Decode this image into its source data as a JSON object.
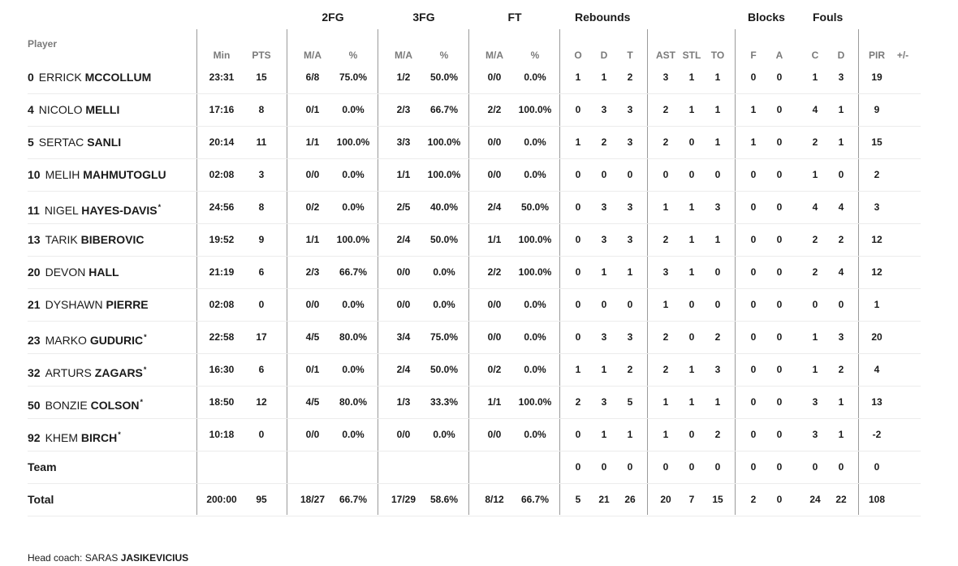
{
  "groups": [
    {
      "key": "2fg",
      "label": "2FG"
    },
    {
      "key": "3fg",
      "label": "3FG"
    },
    {
      "key": "ft",
      "label": "FT"
    },
    {
      "key": "rebounds",
      "label": "Rebounds"
    },
    {
      "key": "blocks",
      "label": "Blocks"
    },
    {
      "key": "fouls",
      "label": "Fouls"
    }
  ],
  "player_header": "Player",
  "columns": [
    "Min",
    "PTS",
    "M/A",
    "%",
    "M/A",
    "%",
    "M/A",
    "%",
    "O",
    "D",
    "T",
    "AST",
    "STL",
    "TO",
    "F",
    "A",
    "C",
    "D",
    "PIR",
    "+/-"
  ],
  "players": [
    {
      "number": "0",
      "first": "ERRICK",
      "last": "MCCOLLUM",
      "starter": false,
      "stats": [
        "23:31",
        "15",
        "6/8",
        "75.0%",
        "1/2",
        "50.0%",
        "0/0",
        "0.0%",
        "1",
        "1",
        "2",
        "3",
        "1",
        "1",
        "0",
        "0",
        "1",
        "3",
        "19",
        ""
      ]
    },
    {
      "number": "4",
      "first": "NICOLO",
      "last": "MELLI",
      "starter": false,
      "stats": [
        "17:16",
        "8",
        "0/1",
        "0.0%",
        "2/3",
        "66.7%",
        "2/2",
        "100.0%",
        "0",
        "3",
        "3",
        "2",
        "1",
        "1",
        "1",
        "0",
        "4",
        "1",
        "9",
        ""
      ]
    },
    {
      "number": "5",
      "first": "SERTAC",
      "last": "SANLI",
      "starter": false,
      "stats": [
        "20:14",
        "11",
        "1/1",
        "100.0%",
        "3/3",
        "100.0%",
        "0/0",
        "0.0%",
        "1",
        "2",
        "3",
        "2",
        "0",
        "1",
        "1",
        "0",
        "2",
        "1",
        "15",
        ""
      ]
    },
    {
      "number": "10",
      "first": "MELIH",
      "last": "MAHMUTOGLU",
      "starter": false,
      "stats": [
        "02:08",
        "3",
        "0/0",
        "0.0%",
        "1/1",
        "100.0%",
        "0/0",
        "0.0%",
        "0",
        "0",
        "0",
        "0",
        "0",
        "0",
        "0",
        "0",
        "1",
        "0",
        "2",
        ""
      ]
    },
    {
      "number": "11",
      "first": "NIGEL",
      "last": "HAYES-DAVIS",
      "starter": true,
      "stats": [
        "24:56",
        "8",
        "0/2",
        "0.0%",
        "2/5",
        "40.0%",
        "2/4",
        "50.0%",
        "0",
        "3",
        "3",
        "1",
        "1",
        "3",
        "0",
        "0",
        "4",
        "4",
        "3",
        ""
      ]
    },
    {
      "number": "13",
      "first": "TARIK",
      "last": "BIBEROVIC",
      "starter": false,
      "stats": [
        "19:52",
        "9",
        "1/1",
        "100.0%",
        "2/4",
        "50.0%",
        "1/1",
        "100.0%",
        "0",
        "3",
        "3",
        "2",
        "1",
        "1",
        "0",
        "0",
        "2",
        "2",
        "12",
        ""
      ]
    },
    {
      "number": "20",
      "first": "DEVON",
      "last": "HALL",
      "starter": false,
      "stats": [
        "21:19",
        "6",
        "2/3",
        "66.7%",
        "0/0",
        "0.0%",
        "2/2",
        "100.0%",
        "0",
        "1",
        "1",
        "3",
        "1",
        "0",
        "0",
        "0",
        "2",
        "4",
        "12",
        ""
      ]
    },
    {
      "number": "21",
      "first": "DYSHAWN",
      "last": "PIERRE",
      "starter": false,
      "stats": [
        "02:08",
        "0",
        "0/0",
        "0.0%",
        "0/0",
        "0.0%",
        "0/0",
        "0.0%",
        "0",
        "0",
        "0",
        "1",
        "0",
        "0",
        "0",
        "0",
        "0",
        "0",
        "1",
        ""
      ]
    },
    {
      "number": "23",
      "first": "MARKO",
      "last": "GUDURIC",
      "starter": true,
      "stats": [
        "22:58",
        "17",
        "4/5",
        "80.0%",
        "3/4",
        "75.0%",
        "0/0",
        "0.0%",
        "0",
        "3",
        "3",
        "2",
        "0",
        "2",
        "0",
        "0",
        "1",
        "3",
        "20",
        ""
      ]
    },
    {
      "number": "32",
      "first": "ARTURS",
      "last": "ZAGARS",
      "starter": true,
      "stats": [
        "16:30",
        "6",
        "0/1",
        "0.0%",
        "2/4",
        "50.0%",
        "0/2",
        "0.0%",
        "1",
        "1",
        "2",
        "2",
        "1",
        "3",
        "0",
        "0",
        "1",
        "2",
        "4",
        ""
      ]
    },
    {
      "number": "50",
      "first": "BONZIE",
      "last": "COLSON",
      "starter": true,
      "stats": [
        "18:50",
        "12",
        "4/5",
        "80.0%",
        "1/3",
        "33.3%",
        "1/1",
        "100.0%",
        "2",
        "3",
        "5",
        "1",
        "1",
        "1",
        "0",
        "0",
        "3",
        "1",
        "13",
        ""
      ]
    },
    {
      "number": "92",
      "first": "KHEM",
      "last": "BIRCH",
      "starter": true,
      "stats": [
        "10:18",
        "0",
        "0/0",
        "0.0%",
        "0/0",
        "0.0%",
        "0/0",
        "0.0%",
        "0",
        "1",
        "1",
        "1",
        "0",
        "2",
        "0",
        "0",
        "3",
        "1",
        "-2",
        ""
      ]
    }
  ],
  "team": {
    "label": "Team",
    "stats": [
      "",
      "",
      "",
      "",
      "",
      "",
      "",
      "",
      "0",
      "0",
      "0",
      "0",
      "0",
      "0",
      "0",
      "0",
      "0",
      "0",
      "0",
      ""
    ]
  },
  "total": {
    "label": "Total",
    "stats": [
      "200:00",
      "95",
      "18/27",
      "66.7%",
      "17/29",
      "58.6%",
      "8/12",
      "66.7%",
      "5",
      "21",
      "26",
      "20",
      "7",
      "15",
      "2",
      "0",
      "24",
      "22",
      "108",
      ""
    ]
  },
  "coach": {
    "prefix": "Head coach:",
    "first": "SARAS",
    "last": "JASIKEVICIUS"
  },
  "starter_mark": "*"
}
